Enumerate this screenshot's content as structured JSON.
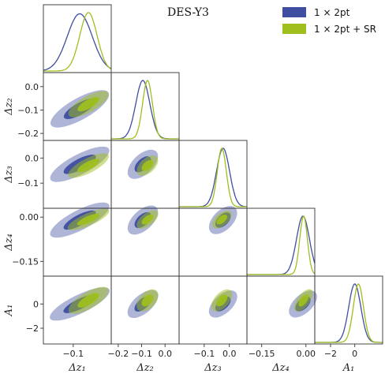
{
  "chart_data": {
    "type": "triangle",
    "title": "DES-Y3",
    "parameters": [
      {
        "key": "dz1",
        "label": "Δz₁",
        "range": [
          -0.155,
          -0.03
        ],
        "ticks": [
          -0.1
        ]
      },
      {
        "key": "dz2",
        "label": "Δz₂",
        "range": [
          -0.23,
          0.06
        ],
        "ticks": [
          -0.2,
          -0.1,
          0.0
        ]
      },
      {
        "key": "dz3",
        "label": "Δz₃",
        "range": [
          -0.2,
          0.07
        ],
        "ticks": [
          -0.1,
          0.0
        ]
      },
      {
        "key": "dz4",
        "label": "Δz₄",
        "range": [
          -0.2,
          0.03
        ],
        "ticks": [
          -0.15,
          0.0
        ]
      },
      {
        "key": "A1",
        "label": "A₁",
        "range": [
          -3.3,
          2.3
        ],
        "ticks": [
          -2,
          0
        ]
      }
    ],
    "tick_labels": {
      "dz1": [
        "−0.1"
      ],
      "dz2": [
        "−0.2",
        "−0.1",
        "0.0"
      ],
      "dz3": [
        "−0.1",
        "0.0"
      ],
      "dz4": [
        "−0.15",
        "0.00"
      ],
      "A1": [
        "−2",
        "0"
      ]
    },
    "series": [
      {
        "name": "1 × 2pt",
        "color": "#3f4ea0",
        "marginals": [
          {
            "mean": -0.088,
            "sigma": 0.023,
            "peak": 0.93
          },
          {
            "mean": -0.095,
            "sigma": 0.03
          },
          {
            "mean": -0.025,
            "sigma": 0.026
          },
          {
            "mean": -0.01,
            "sigma": 0.022
          },
          {
            "mean": 0.0,
            "sigma": 0.5
          }
        ]
      },
      {
        "name": "1 × 2pt + SR",
        "color": "#9fbf1e",
        "marginals": [
          {
            "mean": -0.072,
            "sigma": 0.016
          },
          {
            "mean": -0.075,
            "sigma": 0.021
          },
          {
            "mean": -0.03,
            "sigma": 0.018
          },
          {
            "mean": -0.008,
            "sigma": 0.013
          },
          {
            "mean": 0.3,
            "sigma": 0.42
          }
        ]
      }
    ],
    "correlation_2pt": 0.6,
    "correlation_sr": 0.55,
    "legend_position": "top-right"
  }
}
